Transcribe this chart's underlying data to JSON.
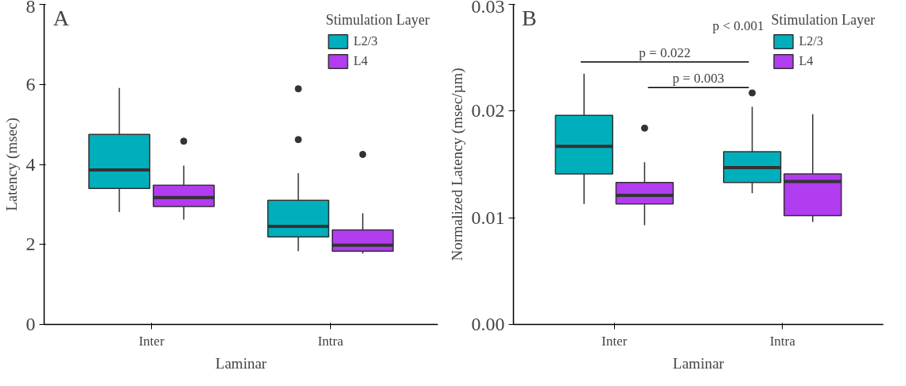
{
  "chart_data": [
    {
      "type": "box",
      "categories": [
        "Inter",
        "Intra"
      ],
      "xlabel": "Laminar",
      "ylabel": "Latency (msec)",
      "legend_title": "Stimulation Layer",
      "legend": "top right",
      "ylim": [
        0,
        8
      ],
      "yticks": [
        0,
        2,
        4,
        6,
        8
      ],
      "annotations": [
        "A"
      ],
      "series": [
        {
          "name": "L2/3",
          "color": "#00afbb",
          "boxes": [
            {
              "low": 2.81,
              "q1": 3.4,
              "median": 3.86,
              "q3": 4.75,
              "high": 5.91
            },
            {
              "low": 1.83,
              "q1": 2.19,
              "median": 2.45,
              "q3": 3.1,
              "high": 3.78,
              "outliers": [
                5.89,
                4.62
              ]
            }
          ]
        },
        {
          "name": "L4",
          "color": "#b23cf0",
          "boxes": [
            {
              "low": 2.62,
              "q1": 2.95,
              "median": 3.17,
              "q3": 3.48,
              "high": 3.97,
              "outliers": [
                4.58
              ]
            },
            {
              "low": 1.77,
              "q1": 1.83,
              "median": 1.98,
              "q3": 2.36,
              "high": 2.78,
              "outliers": [
                4.25
              ]
            }
          ]
        }
      ]
    },
    {
      "type": "box",
      "categories": [
        "Inter",
        "Intra"
      ],
      "xlabel": "Laminar",
      "ylabel": "Normalized Latency (msec/µm)",
      "legend_title": "Stimulation Layer",
      "legend": "top right",
      "ylim": [
        0,
        0.03
      ],
      "yticks": [
        {
          "value": 0,
          "label": "0.00"
        },
        {
          "value": 0.01,
          "label": "0.01"
        },
        {
          "value": 0.02,
          "label": "0.02"
        },
        {
          "value": 0.03,
          "label": "0.03"
        }
      ],
      "annotations": [
        "B",
        "p = 0.022",
        "p = 0.003",
        "p < 0.001"
      ],
      "series": [
        {
          "name": "L2/3",
          "color": "#00afbb",
          "boxes": [
            {
              "low": 0.0113,
              "q1": 0.0141,
              "median": 0.0167,
              "q3": 0.0196,
              "high": 0.0235
            },
            {
              "low": 0.0123,
              "q1": 0.0133,
              "median": 0.0147,
              "q3": 0.0162,
              "high": 0.0204,
              "outliers": [
                0.0217
              ]
            }
          ]
        },
        {
          "name": "L4",
          "color": "#b23cf0",
          "boxes": [
            {
              "low": 0.0093,
              "q1": 0.0113,
              "median": 0.0121,
              "q3": 0.0133,
              "high": 0.0152,
              "outliers": [
                0.0184
              ]
            },
            {
              "low": 0.0096,
              "q1": 0.0102,
              "median": 0.0134,
              "q3": 0.0141,
              "high": 0.0197
            }
          ]
        }
      ]
    }
  ]
}
